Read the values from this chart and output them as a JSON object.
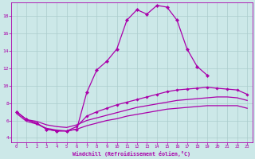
{
  "bg_color": "#cce8e8",
  "line_color": "#aa00aa",
  "grid_color": "#aacccc",
  "xlabel": "Windchill (Refroidissement éolien,°C)",
  "ylim": [
    3.5,
    19.5
  ],
  "xlim": [
    -0.5,
    23.5
  ],
  "yticks": [
    4,
    6,
    8,
    10,
    12,
    14,
    16,
    18
  ],
  "xticks": [
    0,
    1,
    2,
    3,
    4,
    5,
    6,
    7,
    8,
    9,
    10,
    11,
    12,
    13,
    14,
    15,
    16,
    17,
    18,
    19,
    20,
    21,
    22,
    23
  ],
  "curve1_x": [
    0,
    1,
    2,
    3,
    4,
    5,
    6,
    7,
    8,
    9,
    10,
    11,
    12,
    13,
    14,
    15,
    16,
    17,
    18,
    19
  ],
  "curve1_y": [
    7.0,
    6.1,
    5.7,
    5.0,
    4.8,
    4.8,
    5.0,
    9.2,
    11.8,
    12.8,
    14.2,
    17.5,
    18.7,
    18.2,
    19.2,
    19.0,
    17.5,
    14.2,
    12.2,
    11.2
  ],
  "curve2_x": [
    0,
    1,
    2,
    3,
    4,
    5,
    6,
    7,
    8,
    9,
    10,
    11,
    12,
    13,
    14,
    15,
    16,
    17,
    18,
    19,
    20,
    21,
    22,
    23
  ],
  "curve2_y": [
    7.0,
    6.1,
    5.7,
    5.0,
    4.8,
    4.8,
    5.3,
    6.5,
    7.0,
    7.4,
    7.8,
    8.1,
    8.4,
    8.7,
    9.0,
    9.3,
    9.5,
    9.6,
    9.7,
    9.8,
    9.7,
    9.6,
    9.5,
    9.0
  ],
  "curve3_x": [
    0,
    1,
    2,
    3,
    4,
    5,
    6,
    7,
    8,
    9,
    10,
    11,
    12,
    13,
    14,
    15,
    16,
    17,
    18,
    19,
    20,
    21,
    22,
    23
  ],
  "curve3_y": [
    7.0,
    6.1,
    5.9,
    5.5,
    5.3,
    5.2,
    5.5,
    6.0,
    6.3,
    6.6,
    6.9,
    7.2,
    7.5,
    7.7,
    7.9,
    8.1,
    8.3,
    8.4,
    8.5,
    8.6,
    8.7,
    8.7,
    8.6,
    8.3
  ],
  "curve4_x": [
    0,
    1,
    2,
    3,
    4,
    5,
    6,
    7,
    8,
    9,
    10,
    11,
    12,
    13,
    14,
    15,
    16,
    17,
    18,
    19,
    20,
    21,
    22,
    23
  ],
  "curve4_y": [
    6.8,
    5.9,
    5.6,
    5.1,
    4.9,
    4.8,
    5.0,
    5.4,
    5.7,
    6.0,
    6.2,
    6.5,
    6.7,
    6.9,
    7.1,
    7.3,
    7.4,
    7.5,
    7.6,
    7.7,
    7.7,
    7.7,
    7.7,
    7.4
  ]
}
